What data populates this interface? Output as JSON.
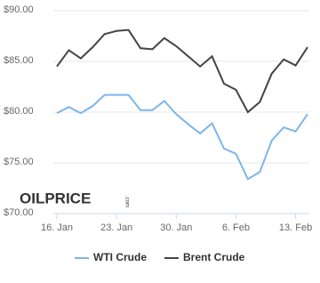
{
  "chart_data": {
    "type": "line",
    "categories": [
      "16. Jan",
      null,
      null,
      null,
      null,
      "23. Jan",
      null,
      null,
      null,
      null,
      "30. Jan",
      null,
      null,
      null,
      null,
      "6. Feb",
      null,
      null,
      null,
      null,
      "13. Feb",
      null
    ],
    "series": [
      {
        "name": "WTI Crude",
        "color": "#7cb5ec",
        "values": [
          79.9,
          80.5,
          79.9,
          80.6,
          81.7,
          81.7,
          81.7,
          80.2,
          80.2,
          81.1,
          79.8,
          78.8,
          77.9,
          78.9,
          76.4,
          75.9,
          73.4,
          74.1,
          77.2,
          78.5,
          78.1,
          79.8
        ]
      },
      {
        "name": "Brent Crude",
        "color": "#434348",
        "values": [
          84.5,
          86.1,
          85.3,
          86.4,
          87.7,
          88.0,
          88.1,
          86.3,
          86.2,
          87.3,
          86.5,
          85.5,
          84.5,
          85.5,
          82.8,
          82.2,
          80.0,
          81.0,
          83.8,
          85.2,
          84.6,
          86.4
        ]
      }
    ],
    "ylim": [
      70,
      90
    ],
    "yticks": [
      {
        "value": 70,
        "label": "$70.00"
      },
      {
        "value": 75,
        "label": "$75.00"
      },
      {
        "value": 80,
        "label": "$80.00"
      },
      {
        "value": 85,
        "label": "$85.00"
      },
      {
        "value": 90,
        "label": "$90.00"
      }
    ],
    "grid": true,
    "legend": "bottom",
    "logo": "OILPRICE",
    "logo_suffix": ".com"
  }
}
